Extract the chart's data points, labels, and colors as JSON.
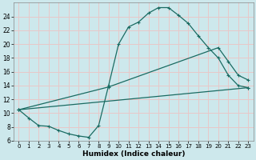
{
  "xlabel": "Humidex (Indice chaleur)",
  "xlim_min": -0.5,
  "xlim_max": 23.5,
  "ylim_min": 6,
  "ylim_max": 26,
  "xticks": [
    0,
    1,
    2,
    3,
    4,
    5,
    6,
    7,
    8,
    9,
    10,
    11,
    12,
    13,
    14,
    15,
    16,
    17,
    18,
    19,
    20,
    21,
    22,
    23
  ],
  "yticks": [
    6,
    8,
    10,
    12,
    14,
    16,
    18,
    20,
    22,
    24
  ],
  "bg_color": "#cde8ec",
  "grid_color": "#e8c8c8",
  "line_color": "#1a6b62",
  "line1_x": [
    0,
    1,
    2,
    3,
    4,
    5,
    6,
    7,
    8,
    9,
    10,
    11,
    12,
    13,
    14,
    15,
    16,
    17,
    18,
    19,
    20,
    21,
    22,
    23
  ],
  "line1_y": [
    10.5,
    9.3,
    8.2,
    8.1,
    7.5,
    7.0,
    6.7,
    6.5,
    8.2,
    14.0,
    20.0,
    22.5,
    23.2,
    24.5,
    25.3,
    25.3,
    24.2,
    23.0,
    21.2,
    19.5,
    18.0,
    15.5,
    14.0,
    13.7
  ],
  "line2_x": [
    0,
    9,
    20,
    21,
    22,
    23
  ],
  "line2_y": [
    10.5,
    13.8,
    19.5,
    17.5,
    15.5,
    14.8
  ],
  "line3_x": [
    0,
    23
  ],
  "line3_y": [
    10.5,
    13.7
  ]
}
